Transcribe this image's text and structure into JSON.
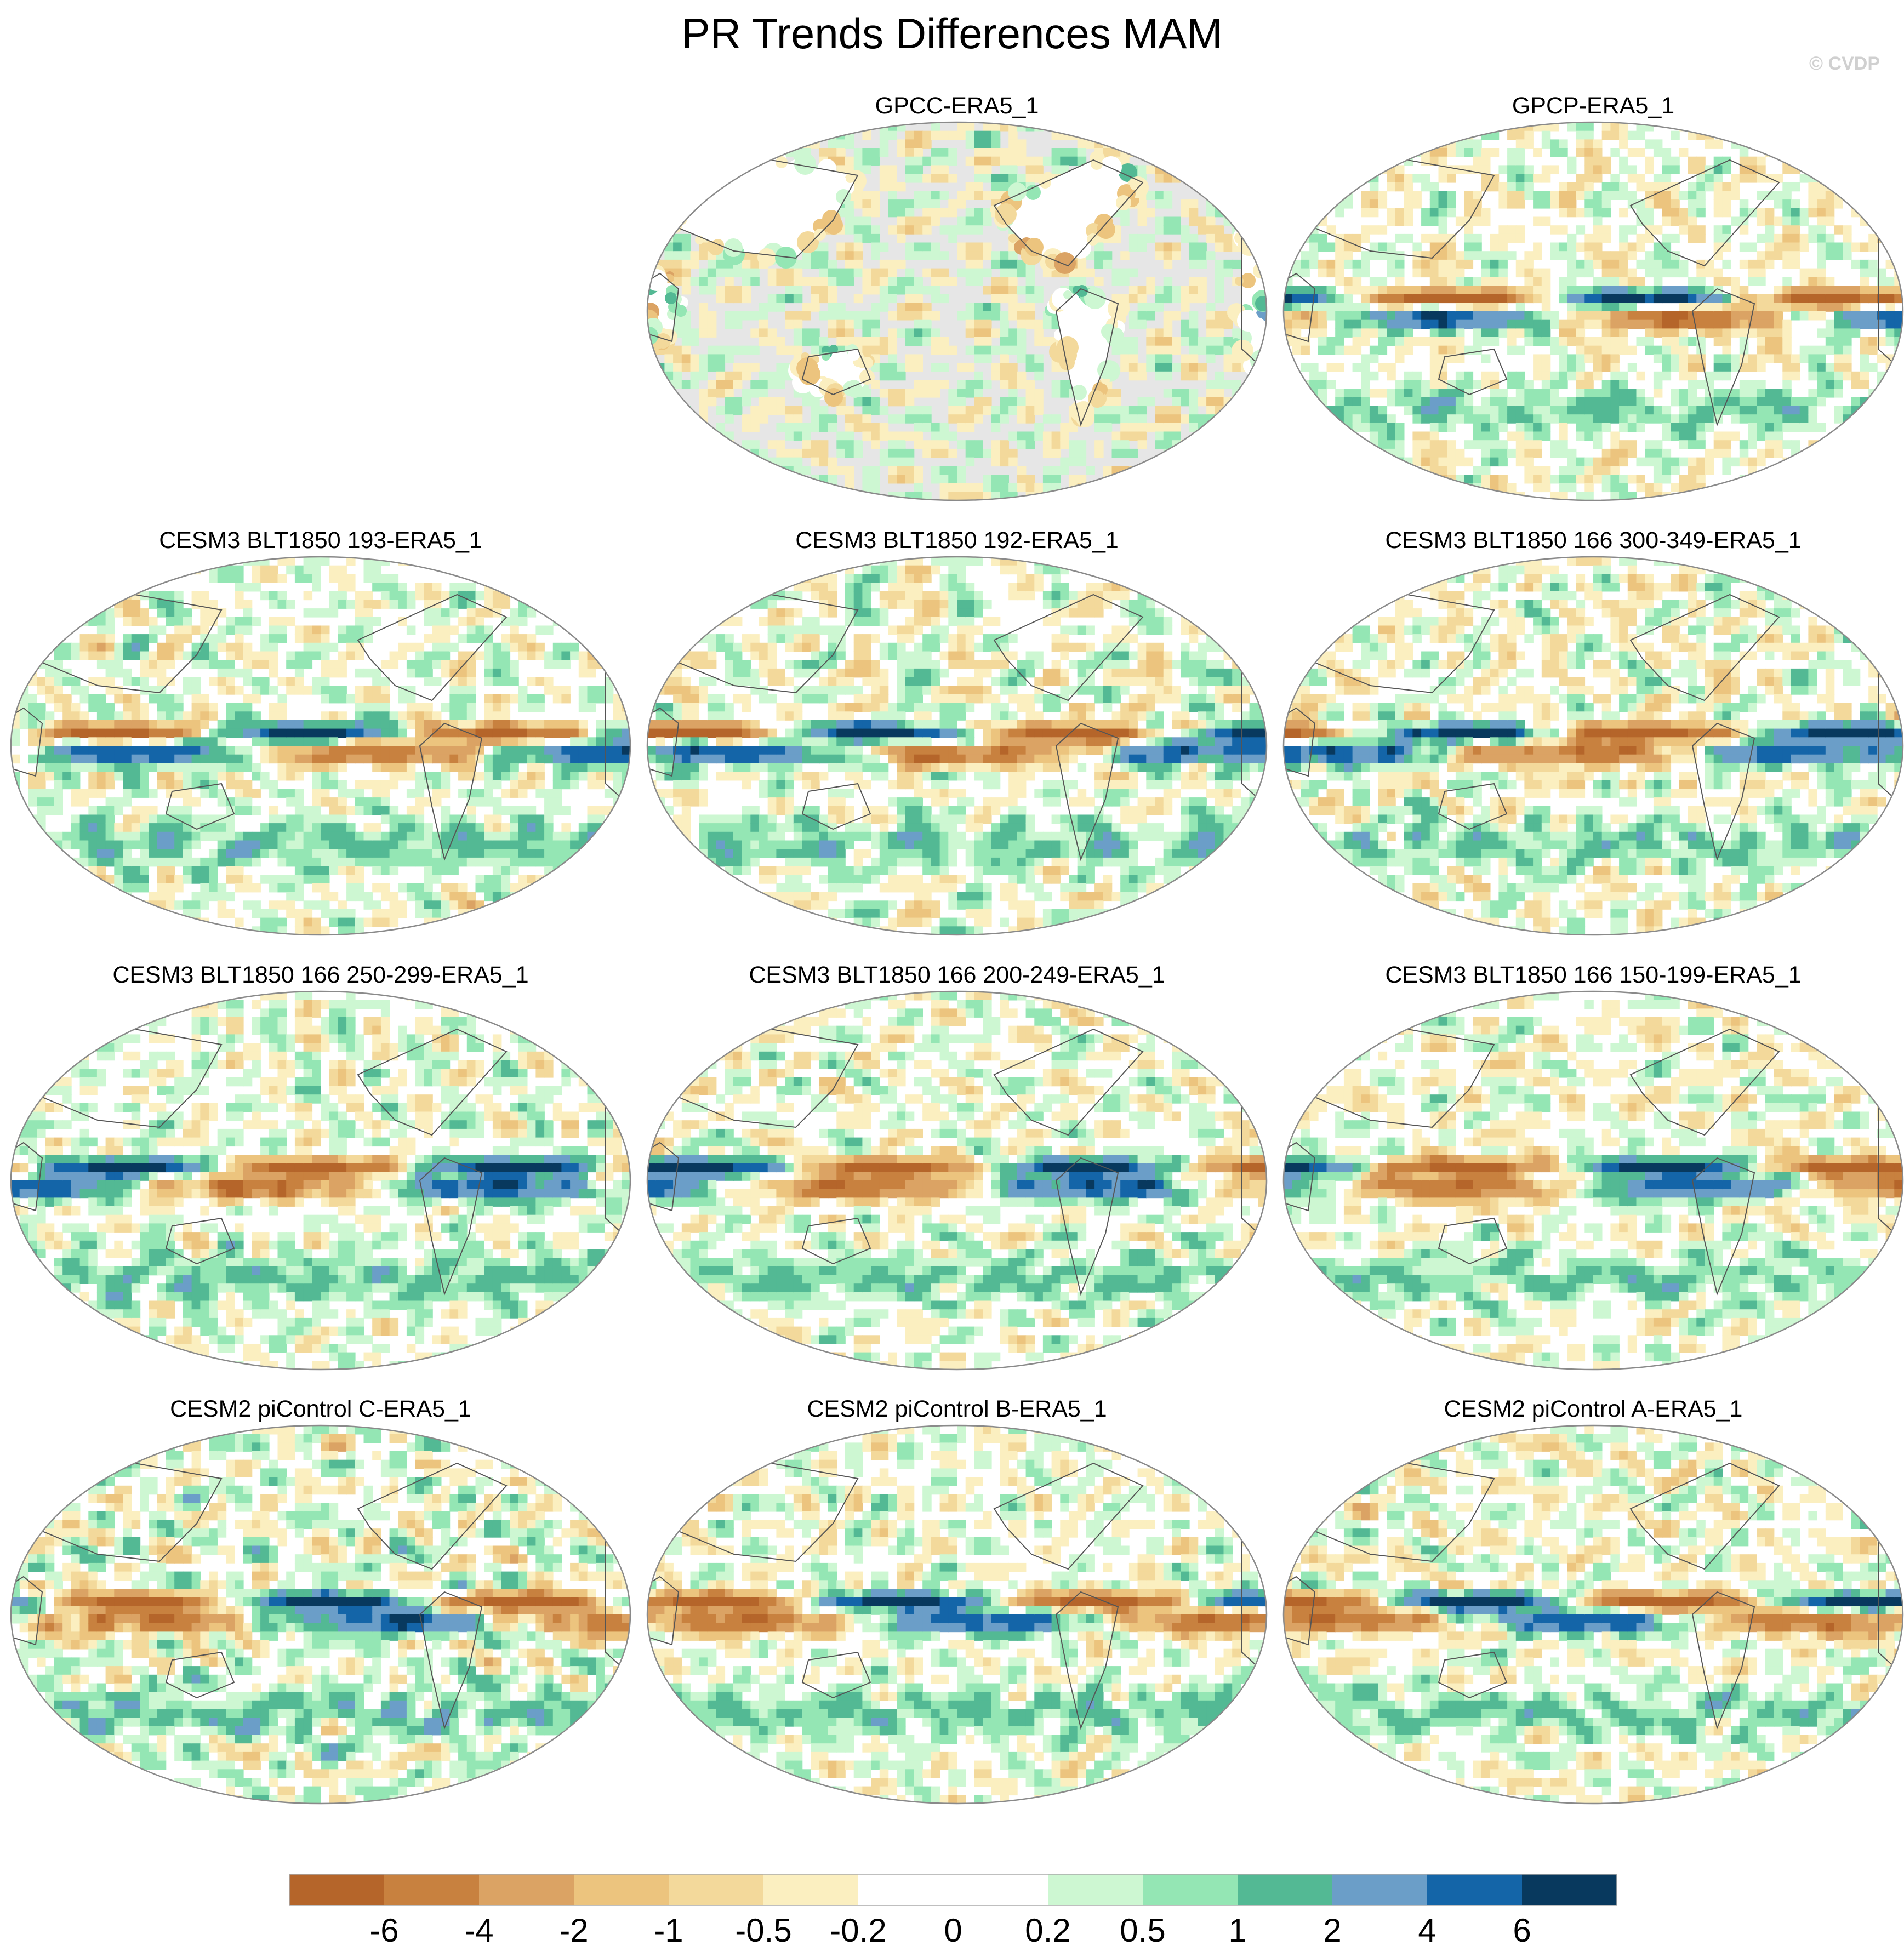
{
  "title": "PR Trends Differences MAM",
  "watermark": "© CVDP",
  "panels": [
    {
      "title": "GPCC-ERA5_1",
      "land_only": true
    },
    {
      "title": "GPCP-ERA5_1",
      "land_only": false
    },
    {
      "title": "CESM3 BLT1850 193-ERA5_1",
      "land_only": false
    },
    {
      "title": "CESM3 BLT1850 192-ERA5_1",
      "land_only": false
    },
    {
      "title": "CESM3 BLT1850 166 300-349-ERA5_1",
      "land_only": false
    },
    {
      "title": "CESM3 BLT1850 166 250-299-ERA5_1",
      "land_only": false
    },
    {
      "title": "CESM3 BLT1850 166 200-249-ERA5_1",
      "land_only": false
    },
    {
      "title": "CESM3 BLT1850 166 150-199-ERA5_1",
      "land_only": false
    },
    {
      "title": "CESM2 piControl C-ERA5_1",
      "land_only": false
    },
    {
      "title": "CESM2 piControl B-ERA5_1",
      "land_only": false
    },
    {
      "title": "CESM2 piControl A-ERA5_1",
      "land_only": false
    }
  ],
  "colorbar": {
    "levels": [
      "-6",
      "-4",
      "-2",
      "-1",
      "-0.5",
      "-0.2",
      "0",
      "0.2",
      "0.5",
      "1",
      "2",
      "4",
      "6"
    ],
    "colors": [
      "#b5652a",
      "#c8813f",
      "#dba364",
      "#ecc47e",
      "#f3d99b",
      "#fbefc0",
      "#ffffff",
      "#ffffff",
      "#cdf7d2",
      "#94e6b4",
      "#53b994",
      "#6b9ec8",
      "#1465a8",
      "#08395e"
    ]
  },
  "colors": {
    "missing": "#e6e6e6",
    "coast": "#555555",
    "outline": "#8a8a8a"
  }
}
